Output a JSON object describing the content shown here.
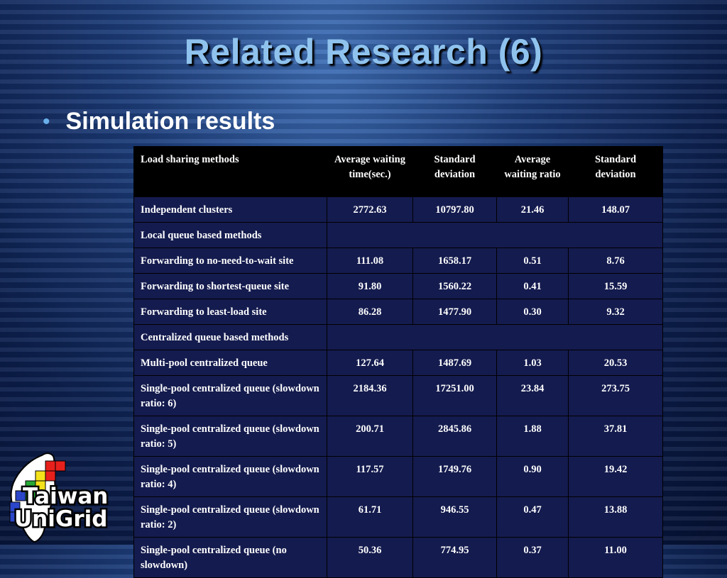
{
  "slide": {
    "title": "Related Research (6)",
    "bullet": "Simulation results"
  },
  "table": {
    "headers": [
      "Load sharing methods",
      "Average waiting time(sec.)",
      "Standard deviation",
      "Average waiting ratio",
      "Standard deviation"
    ],
    "rows": [
      {
        "label": "Independent clusters",
        "values": [
          "2772.63",
          "10797.80",
          "21.46",
          "148.07"
        ]
      },
      {
        "label": "Local queue based methods"
      },
      {
        "label": "Forwarding to no-need-to-wait site",
        "values": [
          "111.08",
          "1658.17",
          "0.51",
          "8.76"
        ]
      },
      {
        "label": "Forwarding to shortest-queue site",
        "values": [
          "91.80",
          "1560.22",
          "0.41",
          "15.59"
        ]
      },
      {
        "label": "Forwarding to least-load site",
        "values": [
          "86.28",
          "1477.90",
          "0.30",
          "9.32"
        ]
      },
      {
        "label": "Centralized queue based methods"
      },
      {
        "label": "Multi-pool centralized queue",
        "values": [
          "127.64",
          "1487.69",
          "1.03",
          "20.53"
        ]
      },
      {
        "label": "Single-pool centralized queue (slowdown ratio: 6)",
        "values": [
          "2184.36",
          "17251.00",
          "23.84",
          "273.75"
        ]
      },
      {
        "label": "Single-pool centralized queue (slowdown ratio: 5)",
        "values": [
          "200.71",
          "2845.86",
          "1.88",
          "37.81"
        ]
      },
      {
        "label": "Single-pool centralized queue (slowdown ratio: 4)",
        "values": [
          "117.57",
          "1749.76",
          "0.90",
          "19.42"
        ]
      },
      {
        "label": "Single-pool centralized queue (slowdown ratio: 2)",
        "values": [
          "61.71",
          "946.55",
          "0.47",
          "13.88"
        ]
      },
      {
        "label": "Single-pool centralized queue (no slowdown)",
        "values": [
          "50.36",
          "774.95",
          "0.37",
          "11.00"
        ]
      }
    ]
  },
  "logo": {
    "line1": "Taiwan",
    "line2": "UniGrid",
    "colors": {
      "red": "#e8201c",
      "yellow": "#f4e21a",
      "green": "#27a935",
      "blue": "#2b46c9",
      "white": "#ffffff",
      "black": "#000000"
    }
  }
}
